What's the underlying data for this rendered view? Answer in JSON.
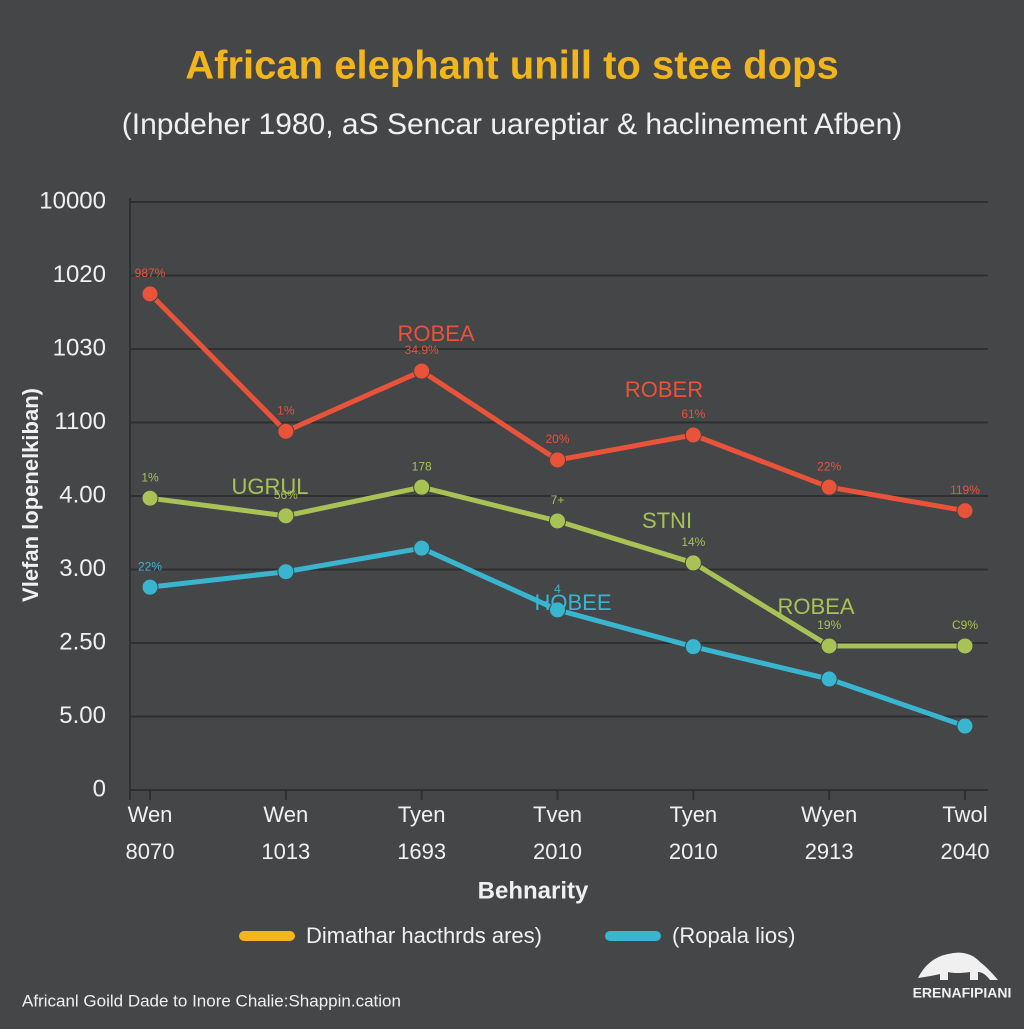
{
  "chart_data": {
    "type": "line",
    "title": "African elephant unill to stee dops",
    "subtitle": "(Inpdeher 1980, aS Sencar uareptiar & haclinement Afben)",
    "y_label": "Vlefan lopenelkiban)",
    "x_label": "Behnarity",
    "categories": [
      "Wen",
      "Wen",
      "Tyen",
      "Tven",
      "Tyen",
      "Wyen",
      "Twol"
    ],
    "category_years": [
      "8070",
      "1013",
      "1693",
      "2010",
      "2010",
      "2913",
      "2040"
    ],
    "ylim": [
      0,
      8
    ],
    "yticks": [
      {
        "value": 0,
        "label": "0"
      },
      {
        "value": 1,
        "label": "5.00"
      },
      {
        "value": 2,
        "label": "2.50"
      },
      {
        "value": 3,
        "label": "3.00"
      },
      {
        "value": 4,
        "label": "4.00"
      },
      {
        "value": 5,
        "label": "1100"
      },
      {
        "value": 6,
        "label": "1030"
      },
      {
        "value": 7,
        "label": "1020"
      },
      {
        "value": 8,
        "label": "10000"
      }
    ],
    "grid": true,
    "series": [
      {
        "color": "#e8533a",
        "values": [
          6.75,
          4.88,
          5.7,
          4.49,
          4.83,
          4.12,
          3.8
        ],
        "point_notes": [
          "987%",
          "1%",
          "34.9%",
          "20%",
          "61%",
          "22%",
          "119%"
        ],
        "tags": [
          "ROBEA",
          "ROBER"
        ]
      },
      {
        "color": "#a8c256",
        "values": [
          3.97,
          3.73,
          4.12,
          3.66,
          3.09,
          1.96,
          1.96
        ],
        "point_notes": [
          "1%",
          "56%",
          "178",
          "7+",
          "14%",
          "19%",
          "C9%"
        ],
        "tags": [
          "UGRUL",
          "STNI",
          "ROBEA"
        ]
      },
      {
        "color": "#3ab5d0",
        "values": [
          2.76,
          2.97,
          3.29,
          2.45,
          1.95,
          1.51,
          0.87
        ],
        "point_notes": [
          "22%",
          null,
          null,
          "4",
          null,
          null,
          null
        ],
        "tags": [
          "HOBEE"
        ]
      }
    ],
    "legend": [
      {
        "name": "Dimathar hacthrds ares)",
        "color": "#f2b51b"
      },
      {
        "name": "(Ropala lios)",
        "color": "#3ab5d0"
      }
    ],
    "footer": "Africanl Goild Dade to Inore Chalie:Shappin.cation",
    "logo": "ERENAFIPIANI"
  }
}
